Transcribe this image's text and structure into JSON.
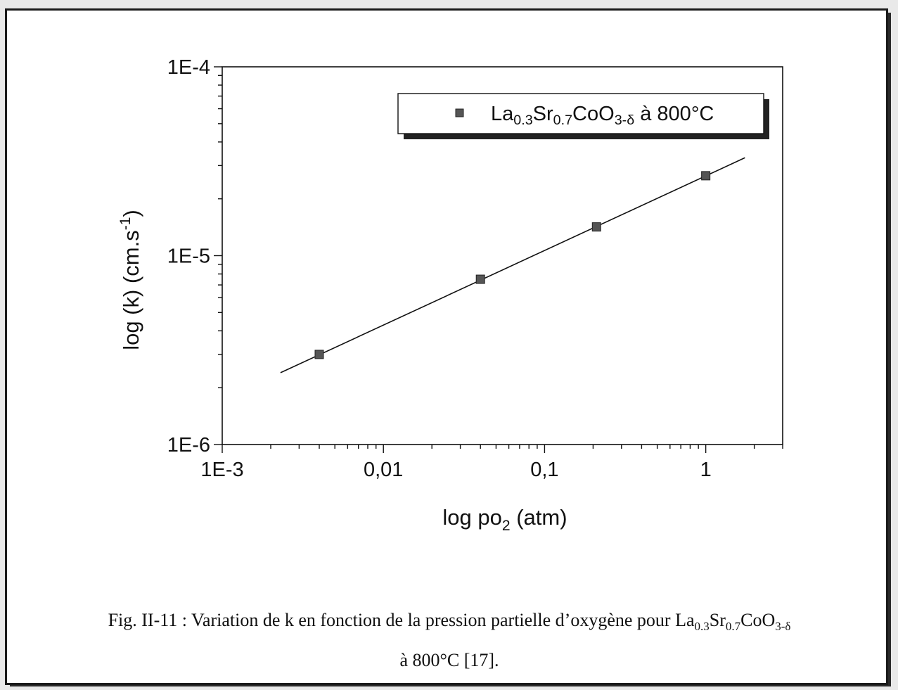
{
  "chart_data": {
    "type": "scatter",
    "xlabel": {
      "main": "log po",
      "sub": "2",
      "rest": "  (atm)"
    },
    "ylabel": {
      "main": "log (k)  (cm.s",
      "sup": "-1",
      "rest": ")"
    },
    "xscale": "log",
    "yscale": "log",
    "xlim": [
      0.001,
      3.0
    ],
    "ylim": [
      1e-06,
      0.0001
    ],
    "x_ticks": [
      {
        "value": 0.001,
        "label": "1E-3"
      },
      {
        "value": 0.01,
        "label": "0,01"
      },
      {
        "value": 0.1,
        "label": "0,1"
      },
      {
        "value": 1,
        "label": "1"
      }
    ],
    "y_ticks": [
      {
        "value": 1e-06,
        "label": "1E-6"
      },
      {
        "value": 1e-05,
        "label": "1E-5"
      },
      {
        "value": 0.0001,
        "label": "1E-4"
      }
    ],
    "series": [
      {
        "name": "La0.3Sr0.7CoO3-δ à 800°C",
        "marker": "square",
        "color": "#555555",
        "x": [
          0.004,
          0.04,
          0.21,
          1.0
        ],
        "y": [
          3e-06,
          7.5e-06,
          1.42e-05,
          2.65e-05
        ]
      }
    ],
    "fit_line": {
      "x": [
        0.0023,
        1.75
      ],
      "y": [
        2.4e-06,
        3.3e-05
      ],
      "color": "#111111"
    },
    "legend": {
      "position": "top-right",
      "parts": [
        {
          "t": "La",
          "s": null
        },
        {
          "t": "0.3",
          "s": "sub"
        },
        {
          "t": "Sr",
          "s": null
        },
        {
          "t": "0.7",
          "s": "sub"
        },
        {
          "t": "CoO",
          "s": null
        },
        {
          "t": "3-δ",
          "s": "sub"
        },
        {
          "t": " à 800°C",
          "s": null
        }
      ]
    },
    "grid": false
  },
  "caption": {
    "line1": [
      {
        "t": "Fig. II-11 : Variation de k en fonction de la pression partielle d’oxygène pour La",
        "s": null
      },
      {
        "t": "0.3",
        "s": "sub"
      },
      {
        "t": "Sr",
        "s": null
      },
      {
        "t": "0.7",
        "s": "sub"
      },
      {
        "t": "CoO",
        "s": null
      },
      {
        "t": "3-δ",
        "s": "sub"
      }
    ],
    "line2": "à 800°C [17]."
  }
}
